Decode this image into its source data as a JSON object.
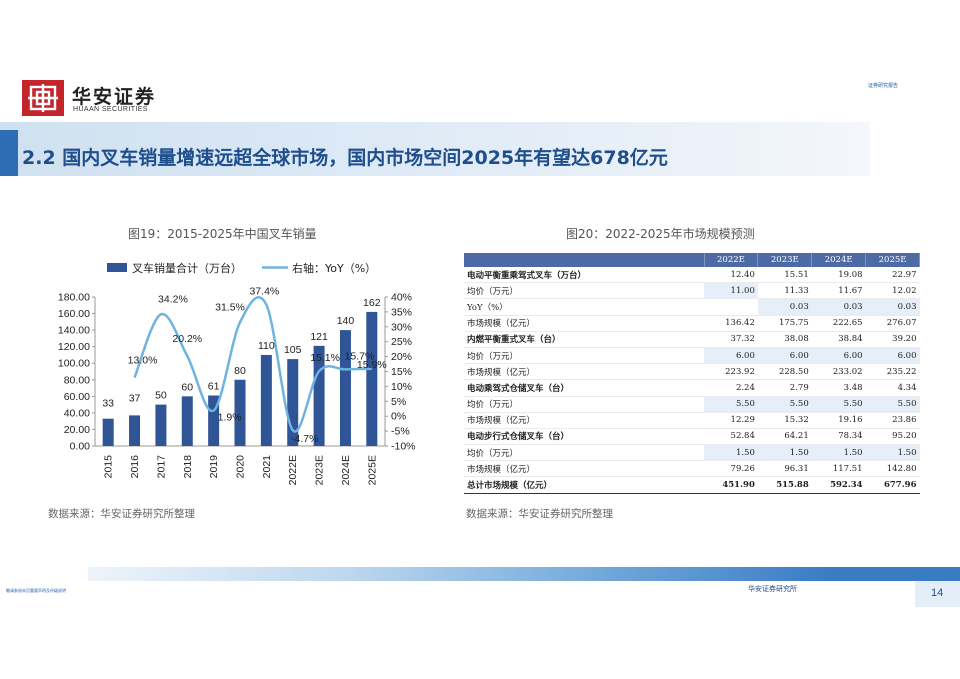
{
  "header": {
    "brand_cn": "华安证券",
    "brand_en": "HUAAN SECURITIES",
    "top_note": "证券研究报告"
  },
  "title": "2.2 国内叉车销量增速远超全球市场，国内市场空间2025年有望达678亿元",
  "figure19": {
    "title": "图19：2015-2025年中国叉车销量",
    "source": "数据来源：华安证券研究所整理"
  },
  "figure20": {
    "title": "图20：2022-2025年市场规模预测",
    "source": "数据来源：华安证券研究所整理",
    "columns": [
      "2022E",
      "2023E",
      "2024E",
      "2025E"
    ],
    "rows": [
      {
        "label": "电动平衡重乘驾式叉车（万台）",
        "values": [
          "12.40",
          "15.51",
          "19.08",
          "22.97"
        ],
        "bold": true
      },
      {
        "label": "均价（万元）",
        "values": [
          "11.00",
          "11.33",
          "11.67",
          "12.02"
        ],
        "hl": [
          0
        ]
      },
      {
        "label": "YoY（%）",
        "values": [
          "",
          "0.03",
          "0.03",
          "0.03"
        ],
        "hl": [
          1,
          2,
          3
        ]
      },
      {
        "label": "市场规模（亿元）",
        "values": [
          "136.42",
          "175.75",
          "222.65",
          "276.07"
        ]
      },
      {
        "label": "内燃平衡重式叉车（台）",
        "values": [
          "37.32",
          "38.08",
          "38.84",
          "39.20"
        ],
        "bold": true
      },
      {
        "label": "均价（万元）",
        "values": [
          "6.00",
          "6.00",
          "6.00",
          "6.00"
        ],
        "hl": [
          0,
          1,
          2,
          3
        ]
      },
      {
        "label": "市场规模（亿元）",
        "values": [
          "223.92",
          "228.50",
          "233.02",
          "235.22"
        ]
      },
      {
        "label": "电动乘驾式仓储叉车（台）",
        "values": [
          "2.24",
          "2.79",
          "3.48",
          "4.34"
        ],
        "bold": true
      },
      {
        "label": "均价（万元）",
        "values": [
          "5.50",
          "5.50",
          "5.50",
          "5.50"
        ],
        "hl": [
          0,
          1,
          2,
          3
        ]
      },
      {
        "label": "市场规模（亿元）",
        "values": [
          "12.29",
          "15.32",
          "19.16",
          "23.86"
        ]
      },
      {
        "label": "电动步行式仓储叉车（台）",
        "values": [
          "52.84",
          "64.21",
          "78.34",
          "95.20"
        ],
        "bold": true
      },
      {
        "label": "均价（万元）",
        "values": [
          "1.50",
          "1.50",
          "1.50",
          "1.50"
        ],
        "hl": [
          0,
          1,
          2,
          3
        ]
      },
      {
        "label": "市场规模（亿元）",
        "values": [
          "79.26",
          "96.31",
          "117.51",
          "142.80"
        ]
      },
      {
        "label": "总计市场规模（亿元）",
        "values": [
          "451.90",
          "515.88",
          "592.34",
          "677.96"
        ],
        "bold": true,
        "total": true
      }
    ]
  },
  "chart_data": {
    "type": "bar",
    "categories": [
      "2015",
      "2016",
      "2017",
      "2018",
      "2019",
      "2020",
      "2021",
      "2022E",
      "2023E",
      "2024E",
      "2025E"
    ],
    "series": [
      {
        "name": "叉车销量合计（万台）",
        "type": "bar",
        "axis": "left",
        "color": "#2f5597",
        "values": [
          33,
          37,
          50,
          60,
          61,
          80,
          110,
          105,
          121,
          140,
          162
        ],
        "labels": [
          "33",
          "37",
          "50",
          "60",
          "61",
          "80",
          "110",
          "105",
          "121",
          "140",
          "162"
        ]
      },
      {
        "name": "右轴：YoY（%）",
        "type": "line",
        "axis": "right",
        "color": "#6fb3e0",
        "values": [
          null,
          13.0,
          34.2,
          20.2,
          1.9,
          31.5,
          37.4,
          -4.7,
          15.1,
          15.7,
          15.9
        ],
        "labels": [
          "",
          "13.0%",
          "34.2%",
          "20.2%",
          "1.9%",
          "31.5%",
          "37.4%",
          "-4.7%",
          "15.1%",
          "15.7%",
          "15.9%"
        ]
      }
    ],
    "ylim": [
      0,
      180
    ],
    "yticks": [
      "0.00",
      "20.00",
      "40.00",
      "60.00",
      "80.00",
      "100.00",
      "120.00",
      "140.00",
      "160.00",
      "180.00"
    ],
    "y2lim": [
      -10,
      40
    ],
    "y2ticks": [
      "-10%",
      "-5%",
      "0%",
      "5%",
      "10%",
      "15%",
      "20%",
      "25%",
      "30%",
      "35%",
      "40%"
    ],
    "legend_position": "top"
  },
  "footer": {
    "org": "华安证券研究所",
    "page": "14",
    "note": "敬请参阅末页重要声明及评级说明"
  }
}
